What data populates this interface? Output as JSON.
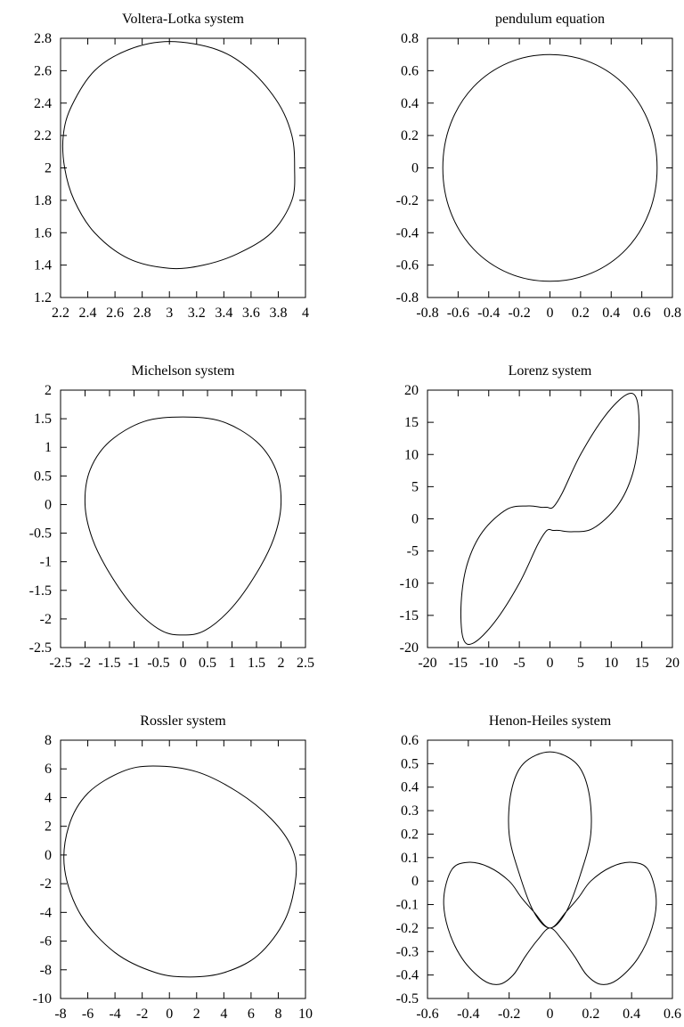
{
  "colors": {
    "background": "#ffffff",
    "foreground": "#000000"
  },
  "chart_data": [
    {
      "type": "line",
      "title": "Voltera-Lotka system",
      "xlim": [
        2.2,
        4
      ],
      "ylim": [
        1.2,
        2.8
      ],
      "x_ticks": [
        2.2,
        2.4,
        2.6,
        2.8,
        3,
        3.2,
        3.4,
        3.6,
        3.8,
        4
      ],
      "x_tick_labels": [
        "2.2",
        "2.4",
        "2.6",
        "2.8",
        "3",
        "3.2",
        "3.4",
        "3.6",
        "3.8",
        "4"
      ],
      "y_ticks": [
        1.2,
        1.4,
        1.6,
        1.8,
        2,
        2.2,
        2.4,
        2.6,
        2.8
      ],
      "y_tick_labels": [
        "1.2",
        "1.4",
        "1.6",
        "1.8",
        "2",
        "2.2",
        "2.4",
        "2.6",
        "2.8"
      ],
      "grid": false,
      "series": [
        {
          "x": [
            3.0,
            3.25,
            3.5,
            3.75,
            3.9,
            3.92,
            3.9,
            3.8,
            3.6,
            3.35,
            3.0,
            2.7,
            2.45,
            2.28,
            2.22,
            2.23,
            2.3,
            2.45,
            2.7,
            3.0
          ],
          "y": [
            1.38,
            1.4,
            1.47,
            1.6,
            1.8,
            2.0,
            2.2,
            2.4,
            2.6,
            2.73,
            2.78,
            2.73,
            2.6,
            2.38,
            2.2,
            2.0,
            1.8,
            1.6,
            1.44,
            1.38
          ]
        }
      ]
    },
    {
      "type": "line",
      "title": "pendulum equation",
      "xlim": [
        -0.8,
        0.8
      ],
      "ylim": [
        -0.8,
        0.8
      ],
      "x_ticks": [
        -0.8,
        -0.6,
        -0.4,
        -0.2,
        0,
        0.2,
        0.4,
        0.6,
        0.8
      ],
      "x_tick_labels": [
        "-0.8",
        "-0.6",
        "-0.4",
        "-0.2",
        "0",
        "0.2",
        "0.4",
        "0.6",
        "0.8"
      ],
      "y_ticks": [
        -0.8,
        -0.6,
        -0.4,
        -0.2,
        0,
        0.2,
        0.4,
        0.6,
        0.8
      ],
      "y_tick_labels": [
        "-0.8",
        "-0.6",
        "-0.4",
        "-0.2",
        "0",
        "0.2",
        "0.4",
        "0.6",
        "0.8"
      ],
      "grid": false,
      "series": [
        {
          "x": [
            0.7,
            0.65,
            0.5,
            0.27,
            0,
            -0.27,
            -0.5,
            -0.65,
            -0.7,
            -0.65,
            -0.5,
            -0.27,
            0,
            0.27,
            0.5,
            0.65,
            0.7
          ],
          "y": [
            0,
            0.27,
            0.5,
            0.65,
            0.7,
            0.65,
            0.5,
            0.27,
            0,
            -0.27,
            -0.5,
            -0.65,
            -0.7,
            -0.65,
            -0.5,
            -0.27,
            0
          ]
        }
      ]
    },
    {
      "type": "line",
      "title": "Michelson system",
      "xlim": [
        -2.5,
        2.5
      ],
      "ylim": [
        -2.5,
        2
      ],
      "x_ticks": [
        -2.5,
        -2,
        -1.5,
        -1,
        -0.5,
        0,
        0.5,
        1,
        1.5,
        2,
        2.5
      ],
      "x_tick_labels": [
        "-2.5",
        "-2",
        "-1.5",
        "-1",
        "-0.5",
        "0",
        "0.5",
        "1",
        "1.5",
        "2",
        "2.5"
      ],
      "y_ticks": [
        -2.5,
        -2,
        -1.5,
        -1,
        -0.5,
        0,
        0.5,
        1,
        1.5,
        2
      ],
      "y_tick_labels": [
        "-2.5",
        "-2",
        "-1.5",
        "-1",
        "-0.5",
        "0",
        "0.5",
        "1",
        "1.5",
        "2"
      ],
      "grid": false,
      "series": [
        {
          "x": [
            0,
            0.8,
            1.5,
            1.9,
            2.0,
            1.85,
            1.5,
            1.0,
            0.45,
            0,
            -0.45,
            -1.0,
            -1.5,
            -1.85,
            -2.0,
            -1.9,
            -1.5,
            -0.8,
            0
          ],
          "y": [
            1.53,
            1.45,
            1.1,
            0.6,
            0,
            -0.6,
            -1.2,
            -1.8,
            -2.2,
            -2.28,
            -2.2,
            -1.8,
            -1.2,
            -0.6,
            0,
            0.6,
            1.1,
            1.45,
            1.53
          ]
        }
      ]
    },
    {
      "type": "line",
      "title": "Lorenz system",
      "xlim": [
        -20,
        20
      ],
      "ylim": [
        -20,
        20
      ],
      "x_ticks": [
        -20,
        -15,
        -10,
        -5,
        0,
        5,
        10,
        15,
        20
      ],
      "x_tick_labels": [
        "-20",
        "-15",
        "-10",
        "-5",
        "0",
        "5",
        "10",
        "15",
        "20"
      ],
      "y_ticks": [
        -20,
        -15,
        -10,
        -5,
        0,
        5,
        10,
        15,
        20
      ],
      "y_tick_labels": [
        "-20",
        "-15",
        "-10",
        "-5",
        "0",
        "5",
        "10",
        "15",
        "20"
      ],
      "grid": false,
      "series": [
        {
          "x": [
            0.5,
            2,
            5,
            9,
            12.5,
            14.2,
            14.5,
            13.5,
            11,
            7,
            3.5,
            1.5,
            0.5,
            -0.5,
            -2,
            -5,
            -9,
            -12.5,
            -14.2,
            -14.5,
            -13.5,
            -11,
            -7,
            -3.5,
            -1.5,
            -0.5,
            0.5
          ],
          "y": [
            1.8,
            4,
            10,
            16,
            19.3,
            18.5,
            13,
            7,
            2,
            -1.5,
            -2,
            -1.8,
            -1.8,
            -1.8,
            -4,
            -10,
            -16,
            -19.3,
            -18.5,
            -13,
            -7,
            -2,
            1.5,
            2,
            1.8,
            1.8,
            1.8
          ]
        }
      ]
    },
    {
      "type": "line",
      "title": "Rossler system",
      "xlim": [
        -8,
        10
      ],
      "ylim": [
        -10,
        8
      ],
      "x_ticks": [
        -8,
        -6,
        -4,
        -2,
        0,
        2,
        4,
        6,
        8,
        10
      ],
      "x_tick_labels": [
        "-8",
        "-6",
        "-4",
        "-2",
        "0",
        "2",
        "4",
        "6",
        "8",
        "10"
      ],
      "y_ticks": [
        -10,
        -8,
        -6,
        -4,
        -2,
        0,
        2,
        4,
        6,
        8
      ],
      "y_tick_labels": [
        "-10",
        "-8",
        "-6",
        "-4",
        "-2",
        "0",
        "2",
        "4",
        "6",
        "8"
      ],
      "grid": false,
      "series": [
        {
          "x": [
            -1.2,
            2,
            5,
            7.5,
            9,
            9.3,
            8.5,
            6.5,
            4,
            1.5,
            -1,
            -4,
            -6.5,
            -7.7,
            -7.4,
            -6,
            -3.5,
            -1.2
          ],
          "y": [
            6.2,
            5.8,
            4.4,
            2.5,
            0.5,
            -1.5,
            -4.5,
            -7,
            -8.2,
            -8.5,
            -8.2,
            -6.8,
            -4.2,
            -1,
            2,
            4.3,
            5.8,
            6.2
          ]
        }
      ]
    },
    {
      "type": "line",
      "title": "Henon-Heiles system",
      "xlim": [
        -0.6,
        0.6
      ],
      "ylim": [
        -0.5,
        0.6
      ],
      "x_ticks": [
        -0.6,
        -0.4,
        -0.2,
        0,
        0.2,
        0.4,
        0.6
      ],
      "x_tick_labels": [
        "-0.6",
        "-0.4",
        "-0.2",
        "0",
        "0.2",
        "0.4",
        "0.6"
      ],
      "y_ticks": [
        -0.5,
        -0.4,
        -0.3,
        -0.2,
        -0.1,
        0,
        0.1,
        0.2,
        0.3,
        0.4,
        0.5,
        0.6
      ],
      "y_tick_labels": [
        "-0.5",
        "-0.4",
        "-0.3",
        "-0.2",
        "-0.1",
        "0",
        "0.1",
        "0.2",
        "0.3",
        "0.4",
        "0.5",
        "0.6"
      ],
      "grid": false,
      "series": [
        {
          "x": [
            0,
            0.08,
            0.14,
            0.2,
            0.3,
            0.4,
            0.48,
            0.52,
            0.5,
            0.43,
            0.33,
            0.25,
            0.18,
            0.12,
            0.06,
            0,
            -0.06,
            -0.12,
            -0.18,
            -0.25,
            -0.33,
            -0.43,
            -0.5,
            -0.52,
            -0.48,
            -0.4,
            -0.3,
            -0.2,
            -0.14,
            -0.08,
            0,
            0.08,
            0.15,
            0.2,
            0.19,
            0.13,
            0,
            -0.13,
            -0.19,
            -0.2,
            -0.15,
            -0.08,
            0
          ],
          "y": [
            -0.2,
            -0.13,
            -0.07,
            0,
            0.06,
            0.08,
            0.05,
            -0.07,
            -0.2,
            -0.33,
            -0.42,
            -0.44,
            -0.4,
            -0.32,
            -0.25,
            -0.2,
            -0.25,
            -0.32,
            -0.4,
            -0.44,
            -0.42,
            -0.33,
            -0.2,
            -0.07,
            0.05,
            0.08,
            0.06,
            0,
            -0.07,
            -0.13,
            -0.2,
            -0.13,
            0.03,
            0.2,
            0.38,
            0.5,
            0.55,
            0.5,
            0.38,
            0.2,
            0.03,
            -0.13,
            -0.2
          ]
        }
      ]
    }
  ]
}
